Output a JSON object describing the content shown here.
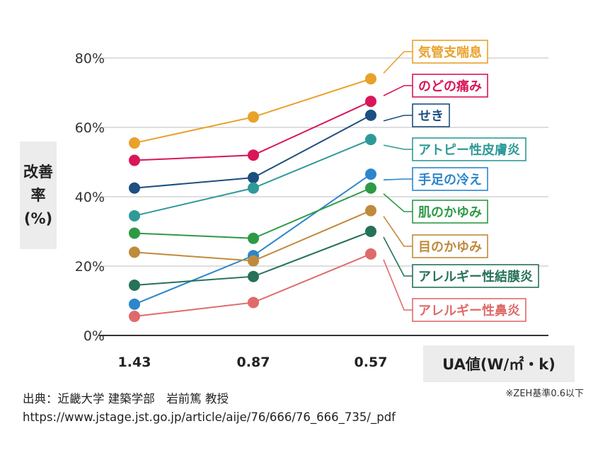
{
  "chart_data": {
    "type": "line",
    "categories": [
      "1.43",
      "0.87",
      "0.57"
    ],
    "ylim": [
      0,
      80
    ],
    "yticks": [
      "0%",
      "20%",
      "40%",
      "60%",
      "80%"
    ],
    "xlabel": "UA値(W/㎡・k)",
    "ylabel": "改善率\n(%)",
    "grid": "horizontal",
    "series": [
      {
        "name": "気管支喘息",
        "values": [
          55.5,
          63,
          74
        ],
        "color": "#e9a12a"
      },
      {
        "name": "のどの痛み",
        "values": [
          50.5,
          52,
          67.5
        ],
        "color": "#d9165a"
      },
      {
        "name": "せき",
        "values": [
          42.5,
          45.5,
          63.5
        ],
        "color": "#1d4f80"
      },
      {
        "name": "アトピー性皮膚炎",
        "values": [
          34.5,
          42.5,
          56.5
        ],
        "color": "#2e9a98"
      },
      {
        "name": "手足の冷え",
        "values": [
          9,
          23,
          46.5
        ],
        "color": "#2c86cc"
      },
      {
        "name": "肌のかゆみ",
        "values": [
          29.5,
          28,
          42.5
        ],
        "color": "#2d9a45"
      },
      {
        "name": "目のかゆみ",
        "values": [
          24,
          21.5,
          36
        ],
        "color": "#c08a3c"
      },
      {
        "name": "アレルギー性結膜炎",
        "values": [
          14.5,
          17,
          30
        ],
        "color": "#257257"
      },
      {
        "name": "アレルギー性鼻炎",
        "values": [
          5.5,
          9.5,
          23.5
        ],
        "color": "#e06a6a"
      }
    ]
  },
  "footnote": "※ZEH基準0.6以下",
  "source": "出典：近畿大学 建築学部　岩前篤 教授",
  "url": "https://www.jstage.jst.go.jp/article/aije/76/666/76_666_735/_pdf"
}
